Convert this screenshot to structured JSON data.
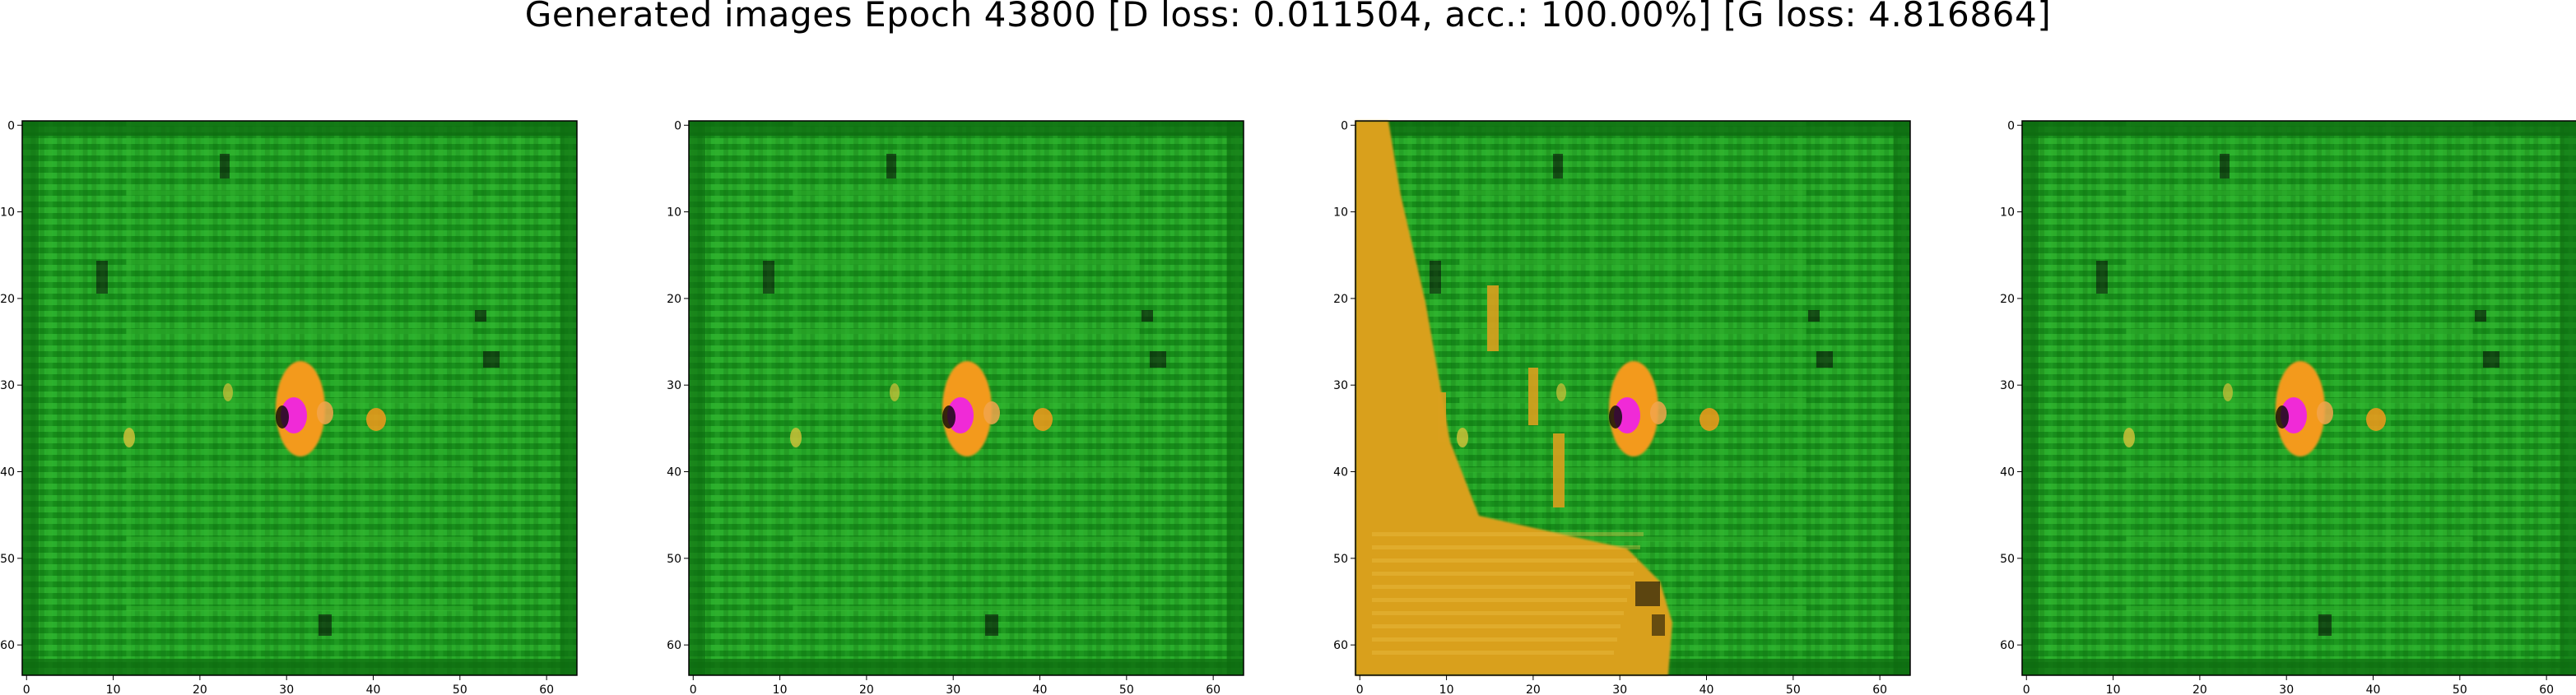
{
  "figure": {
    "title": "Generated images Epoch 43800 [D loss: 0.011504, acc.: 100.00%] [G loss: 4.816864]",
    "panel_count": 4,
    "x_ticks": [
      "0",
      "10",
      "20",
      "30",
      "40",
      "50",
      "60"
    ],
    "y_ticks": [
      "0",
      "10",
      "20",
      "30",
      "40",
      "50",
      "60"
    ],
    "axis_range": [
      0,
      63
    ],
    "colors": {
      "green_dark": "#0e6a10",
      "green_mid": "#1f9e22",
      "green_light": "#39c235",
      "orange": "#f39a1c",
      "gold": "#d9a01e",
      "magenta": "#f02ad7",
      "black": "#080808"
    }
  }
}
